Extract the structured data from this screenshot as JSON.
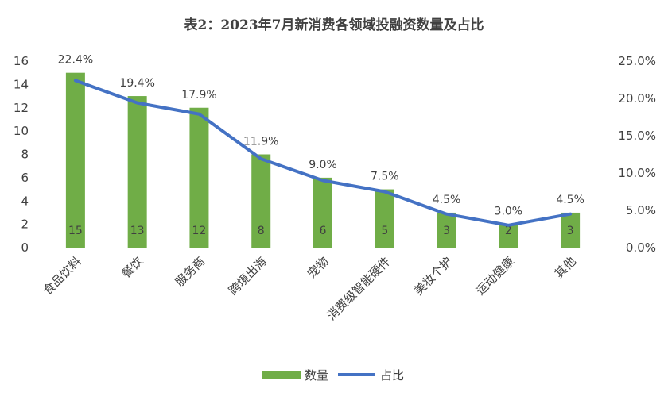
{
  "chart_data": {
    "type": "bar",
    "title": "表2：2023年7月新消费各领域投融资数量及占比",
    "categories": [
      "食品饮料",
      "餐饮",
      "服务商",
      "跨境出海",
      "宠物",
      "消费级智能硬件",
      "美妆个护",
      "运动健康",
      "其他"
    ],
    "series": [
      {
        "name": "数量",
        "type": "bar",
        "axis": "left",
        "values": [
          15,
          13,
          12,
          8,
          6,
          5,
          3,
          2,
          3
        ],
        "labels": [
          "15",
          "13",
          "12",
          "8",
          "6",
          "5",
          "3",
          "2",
          "3"
        ],
        "color": "#70AD47"
      },
      {
        "name": "占比",
        "type": "line",
        "axis": "right",
        "values": [
          22.4,
          19.4,
          17.9,
          11.9,
          9.0,
          7.5,
          4.5,
          3.0,
          4.5
        ],
        "labels": [
          "22.4%",
          "19.4%",
          "17.9%",
          "11.9%",
          "9.0%",
          "7.5%",
          "4.5%",
          "3.0%",
          "4.5%"
        ],
        "color": "#4472C4"
      }
    ],
    "y_left": {
      "min": 0,
      "max": 16,
      "ticks": [
        "0",
        "2",
        "4",
        "6",
        "8",
        "10",
        "12",
        "14",
        "16"
      ]
    },
    "y_right": {
      "min": 0,
      "max": 25,
      "ticks": [
        "0.0%",
        "5.0%",
        "10.0%",
        "15.0%",
        "20.0%",
        "25.0%"
      ]
    },
    "legend": {
      "position": "bottom",
      "items": [
        "数量",
        "占比"
      ]
    },
    "grid": false
  }
}
